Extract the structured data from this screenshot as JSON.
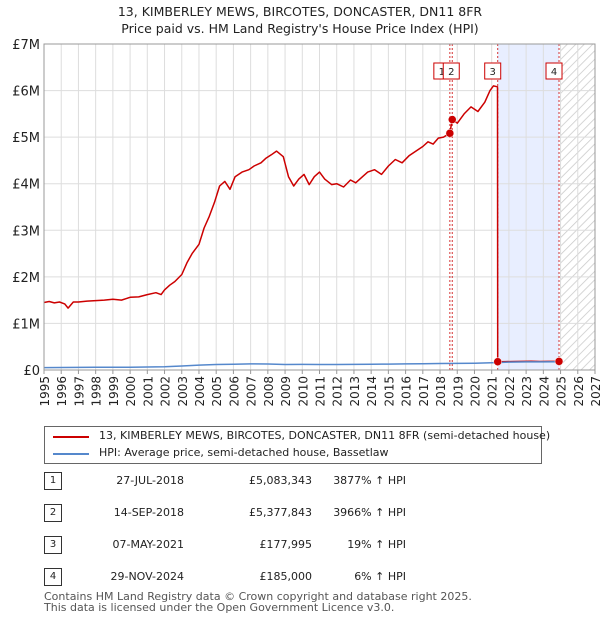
{
  "title_line1": "13, KIMBERLEY MEWS, BIRCOTES, DONCASTER, DN11 8FR",
  "title_line2": "Price paid vs. HM Land Registry's House Price Index (HPI)",
  "colors": {
    "price_line": "#cc0000",
    "hpi_line": "#5588cc",
    "marker": "#cc0000",
    "highlight": "#e8eeff",
    "grid": "#dddddd"
  },
  "chart_data": {
    "type": "line",
    "title": "13, KIMBERLEY MEWS, BIRCOTES, DONCASTER, DN11 8FR",
    "subtitle": "Price paid vs. HM Land Registry's House Price Index (HPI)",
    "xlabel": "",
    "ylabel": "",
    "xlim": [
      1995,
      2027
    ],
    "ylim": [
      0,
      7000000
    ],
    "x_ticks": [
      "1995",
      "1996",
      "1997",
      "1998",
      "1999",
      "2000",
      "2001",
      "2002",
      "2003",
      "2004",
      "2005",
      "2006",
      "2007",
      "2008",
      "2009",
      "2010",
      "2011",
      "2012",
      "2013",
      "2014",
      "2015",
      "2016",
      "2017",
      "2018",
      "2019",
      "2020",
      "2021",
      "2022",
      "2023",
      "2024",
      "2025",
      "2026",
      "2027"
    ],
    "y_ticks": [
      {
        "value": 0,
        "label": "£0"
      },
      {
        "value": 1000000,
        "label": "£1M"
      },
      {
        "value": 2000000,
        "label": "£2M"
      },
      {
        "value": 3000000,
        "label": "£3M"
      },
      {
        "value": 4000000,
        "label": "£4M"
      },
      {
        "value": 5000000,
        "label": "£5M"
      },
      {
        "value": 6000000,
        "label": "£6M"
      },
      {
        "value": 7000000,
        "label": "£7M"
      }
    ],
    "grid": true,
    "highlight_range": [
      2021.35,
      2024.91
    ],
    "future_hatch_from": 2025.0,
    "series": [
      {
        "name": "13, KIMBERLEY MEWS, BIRCOTES, DONCASTER, DN11 8FR (semi-detached house)",
        "color": "#cc0000",
        "points": [
          [
            1995.0,
            1450000
          ],
          [
            1995.3,
            1470000
          ],
          [
            1995.6,
            1440000
          ],
          [
            1995.9,
            1460000
          ],
          [
            1996.2,
            1420000
          ],
          [
            1996.4,
            1330000
          ],
          [
            1996.7,
            1460000
          ],
          [
            1997.0,
            1460000
          ],
          [
            1997.5,
            1480000
          ],
          [
            1998.0,
            1490000
          ],
          [
            1998.5,
            1500000
          ],
          [
            1999.0,
            1520000
          ],
          [
            1999.5,
            1500000
          ],
          [
            2000.0,
            1560000
          ],
          [
            2000.5,
            1570000
          ],
          [
            2001.0,
            1620000
          ],
          [
            2001.5,
            1660000
          ],
          [
            2001.8,
            1620000
          ],
          [
            2002.0,
            1720000
          ],
          [
            2002.3,
            1820000
          ],
          [
            2002.6,
            1900000
          ],
          [
            2003.0,
            2050000
          ],
          [
            2003.3,
            2300000
          ],
          [
            2003.6,
            2500000
          ],
          [
            2004.0,
            2700000
          ],
          [
            2004.3,
            3050000
          ],
          [
            2004.6,
            3300000
          ],
          [
            2004.9,
            3600000
          ],
          [
            2005.2,
            3950000
          ],
          [
            2005.5,
            4050000
          ],
          [
            2005.8,
            3880000
          ],
          [
            2006.1,
            4150000
          ],
          [
            2006.5,
            4250000
          ],
          [
            2006.9,
            4300000
          ],
          [
            2007.2,
            4380000
          ],
          [
            2007.6,
            4450000
          ],
          [
            2007.9,
            4550000
          ],
          [
            2008.2,
            4620000
          ],
          [
            2008.5,
            4700000
          ],
          [
            2008.9,
            4580000
          ],
          [
            2009.2,
            4150000
          ],
          [
            2009.5,
            3950000
          ],
          [
            2009.8,
            4100000
          ],
          [
            2010.1,
            4200000
          ],
          [
            2010.4,
            3980000
          ],
          [
            2010.7,
            4150000
          ],
          [
            2011.0,
            4250000
          ],
          [
            2011.3,
            4100000
          ],
          [
            2011.7,
            3980000
          ],
          [
            2012.0,
            4000000
          ],
          [
            2012.4,
            3930000
          ],
          [
            2012.8,
            4080000
          ],
          [
            2013.1,
            4020000
          ],
          [
            2013.5,
            4150000
          ],
          [
            2013.8,
            4250000
          ],
          [
            2014.2,
            4300000
          ],
          [
            2014.6,
            4200000
          ],
          [
            2015.0,
            4380000
          ],
          [
            2015.4,
            4520000
          ],
          [
            2015.8,
            4450000
          ],
          [
            2016.2,
            4600000
          ],
          [
            2016.6,
            4700000
          ],
          [
            2017.0,
            4800000
          ],
          [
            2017.3,
            4900000
          ],
          [
            2017.6,
            4850000
          ],
          [
            2017.9,
            4980000
          ],
          [
            2018.2,
            5000000
          ],
          [
            2018.57,
            5083343
          ],
          [
            2018.71,
            5377843
          ],
          [
            2019.0,
            5300000
          ],
          [
            2019.4,
            5500000
          ],
          [
            2019.8,
            5650000
          ],
          [
            2020.2,
            5550000
          ],
          [
            2020.6,
            5750000
          ],
          [
            2020.9,
            6000000
          ],
          [
            2021.1,
            6100000
          ],
          [
            2021.34,
            6080000
          ],
          [
            2021.35,
            177995
          ],
          [
            2021.8,
            180000
          ],
          [
            2022.3,
            182000
          ],
          [
            2022.8,
            184000
          ],
          [
            2023.3,
            186000
          ],
          [
            2023.8,
            183000
          ],
          [
            2024.3,
            184000
          ],
          [
            2024.91,
            185000
          ]
        ]
      },
      {
        "name": "HPI: Average price, semi-detached house, Bassetlaw",
        "color": "#5588cc",
        "points": [
          [
            1995.0,
            52000
          ],
          [
            1996.0,
            53000
          ],
          [
            1997.0,
            55000
          ],
          [
            1998.0,
            57000
          ],
          [
            1999.0,
            59000
          ],
          [
            2000.0,
            61000
          ],
          [
            2001.0,
            64000
          ],
          [
            2002.0,
            71000
          ],
          [
            2003.0,
            85000
          ],
          [
            2004.0,
            105000
          ],
          [
            2005.0,
            118000
          ],
          [
            2006.0,
            124000
          ],
          [
            2007.0,
            130000
          ],
          [
            2008.0,
            128000
          ],
          [
            2009.0,
            118000
          ],
          [
            2010.0,
            120000
          ],
          [
            2011.0,
            119000
          ],
          [
            2012.0,
            118000
          ],
          [
            2013.0,
            120000
          ],
          [
            2014.0,
            123000
          ],
          [
            2015.0,
            127000
          ],
          [
            2016.0,
            131000
          ],
          [
            2017.0,
            135000
          ],
          [
            2018.0,
            139000
          ],
          [
            2019.0,
            142000
          ],
          [
            2020.0,
            146000
          ],
          [
            2021.0,
            157000
          ],
          [
            2022.0,
            170000
          ],
          [
            2023.0,
            175000
          ],
          [
            2024.0,
            174000
          ],
          [
            2024.91,
            176000
          ]
        ]
      }
    ],
    "sales": [
      {
        "label": "1",
        "x": 2018.57,
        "y": 5083343,
        "date": "27-JUL-2018",
        "price": "£5,083,343",
        "hpi": "3877% ↑ HPI"
      },
      {
        "label": "2",
        "x": 2018.71,
        "y": 5377843,
        "date": "14-SEP-2018",
        "price": "£5,377,843",
        "hpi": "3966% ↑ HPI"
      },
      {
        "label": "3",
        "x": 2021.35,
        "y": 177995,
        "date": "07-MAY-2021",
        "price": "£177,995",
        "hpi": "19% ↑ HPI"
      },
      {
        "label": "4",
        "x": 2024.91,
        "y": 185000,
        "date": "29-NOV-2024",
        "price": "£185,000",
        "hpi": "6% ↑ HPI"
      }
    ]
  },
  "legend": {
    "price_label": "13, KIMBERLEY MEWS, BIRCOTES, DONCASTER, DN11 8FR (semi-detached house)",
    "hpi_label": "HPI: Average price, semi-detached house, Bassetlaw"
  },
  "transactions": [
    {
      "num": "1",
      "date": "27-JUL-2018",
      "price": "£5,083,343",
      "hpi": "3877% ↑ HPI"
    },
    {
      "num": "2",
      "date": "14-SEP-2018",
      "price": "£5,377,843",
      "hpi": "3966% ↑ HPI"
    },
    {
      "num": "3",
      "date": "07-MAY-2021",
      "price": "£177,995",
      "hpi": "19% ↑ HPI"
    },
    {
      "num": "4",
      "date": "29-NOV-2024",
      "price": "£185,000",
      "hpi": "6% ↑ HPI"
    }
  ],
  "footer_line1": "Contains HM Land Registry data © Crown copyright and database right 2025.",
  "footer_line2": "This data is licensed under the Open Government Licence v3.0."
}
